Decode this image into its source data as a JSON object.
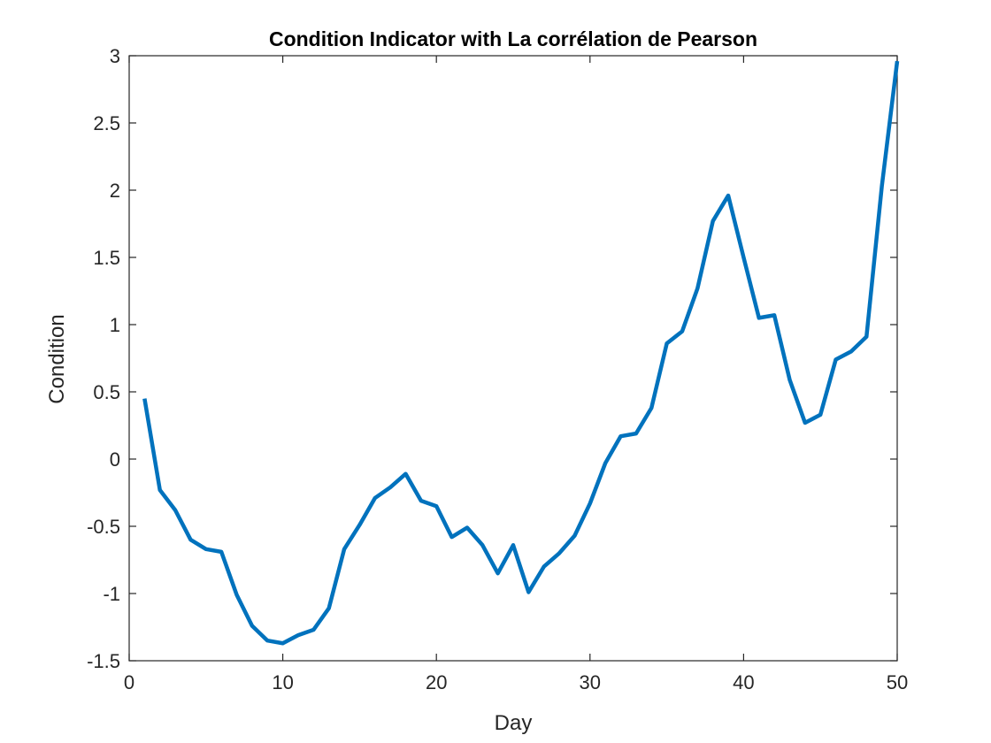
{
  "chart_data": {
    "type": "line",
    "title": "Condition Indicator with La corrélation de Pearson",
    "xlabel": "Day",
    "ylabel": "Condition",
    "xlim": [
      0,
      50
    ],
    "ylim": [
      -1.5,
      3
    ],
    "xticks": [
      0,
      10,
      20,
      30,
      40,
      50
    ],
    "yticks": [
      -1.5,
      -1,
      -0.5,
      0,
      0.5,
      1,
      1.5,
      2,
      2.5,
      3
    ],
    "xtick_labels": [
      "0",
      "10",
      "20",
      "30",
      "40",
      "50"
    ],
    "ytick_labels": [
      "-1.5",
      "-1",
      "-0.5",
      "0",
      "0.5",
      "1",
      "1.5",
      "2",
      "2.5",
      "3"
    ],
    "grid": false,
    "color": "#0072BD",
    "series": [
      {
        "x": [
          1,
          2,
          3,
          4,
          5,
          6,
          7,
          8,
          9,
          10,
          11,
          12,
          13,
          14,
          15,
          16,
          17,
          18,
          19,
          20,
          21,
          22,
          23,
          24,
          25,
          26,
          27,
          28,
          29,
          30,
          31,
          32,
          33,
          34,
          35,
          36,
          37,
          38,
          39,
          40,
          41,
          42,
          43,
          44,
          45,
          46,
          47,
          48,
          49,
          50
        ],
        "values": [
          0.45,
          -0.23,
          -0.38,
          -0.6,
          -0.67,
          -0.69,
          -1.01,
          -1.24,
          -1.35,
          -1.37,
          -1.31,
          -1.27,
          -1.11,
          -0.67,
          -0.49,
          -0.29,
          -0.21,
          -0.11,
          -0.31,
          -0.35,
          -0.58,
          -0.51,
          -0.64,
          -0.85,
          -0.64,
          -0.99,
          -0.8,
          -0.7,
          -0.57,
          -0.33,
          -0.03,
          0.17,
          0.19,
          0.38,
          0.86,
          0.95,
          1.27,
          1.77,
          1.96,
          1.5,
          1.05,
          1.07,
          0.59,
          0.27,
          0.33,
          0.74,
          0.8,
          0.91,
          2.03,
          2.96
        ]
      }
    ]
  }
}
